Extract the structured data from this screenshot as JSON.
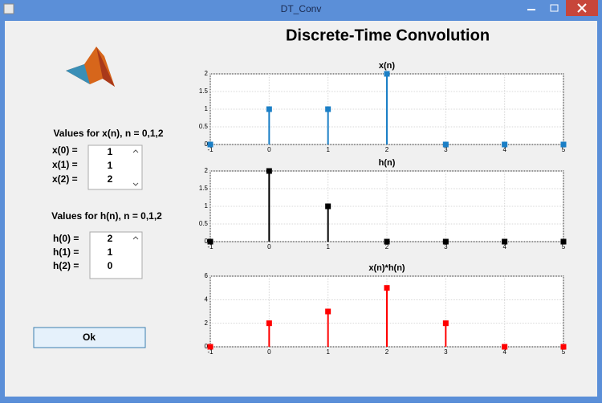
{
  "window": {
    "title": "DT_Conv"
  },
  "heading": "Discrete-Time Convolution",
  "x_input": {
    "label": "Values for x(n), n = 0,1,2",
    "row_labels": [
      "x(0) =",
      "x(1) =",
      "x(2) ="
    ],
    "values": [
      1,
      1,
      2
    ]
  },
  "h_input": {
    "label": "Values for h(n), n = 0,1,2",
    "row_labels": [
      "h(0) =",
      "h(1) =",
      "h(2) ="
    ],
    "values": [
      2,
      1,
      0
    ]
  },
  "ok_button": "Ok",
  "chart_data": [
    {
      "type": "stem",
      "title": "x(n)",
      "x": [
        -1,
        0,
        1,
        2,
        3,
        4,
        5
      ],
      "values": [
        0,
        1,
        1,
        2,
        0,
        0,
        0
      ],
      "color": "#1b7fc6",
      "xlim": [
        -1,
        5
      ],
      "xticks": [
        -1,
        0,
        1,
        2,
        3,
        4,
        5
      ],
      "ylim": [
        0,
        2
      ],
      "yticks": [
        0,
        0.5,
        1,
        1.5,
        2
      ],
      "grid": true
    },
    {
      "type": "stem",
      "title": "h(n)",
      "x": [
        -1,
        0,
        1,
        2,
        3,
        4,
        5
      ],
      "values": [
        0,
        2,
        1,
        0,
        0,
        0,
        0
      ],
      "color": "#000000",
      "xlim": [
        -1,
        5
      ],
      "xticks": [
        -1,
        0,
        1,
        2,
        3,
        4,
        5
      ],
      "ylim": [
        0,
        2
      ],
      "yticks": [
        0,
        0.5,
        1,
        1.5,
        2
      ],
      "grid": true
    },
    {
      "type": "stem",
      "title": "x(n)*h(n)",
      "x": [
        -1,
        0,
        1,
        2,
        3,
        4,
        5
      ],
      "values": [
        0,
        2,
        3,
        5,
        2,
        0,
        0
      ],
      "color": "#ff0000",
      "xlim": [
        -1,
        5
      ],
      "xticks": [
        -1,
        0,
        1,
        2,
        3,
        4,
        5
      ],
      "ylim": [
        0,
        6
      ],
      "yticks": [
        0,
        2,
        4,
        6
      ],
      "grid": true
    }
  ]
}
